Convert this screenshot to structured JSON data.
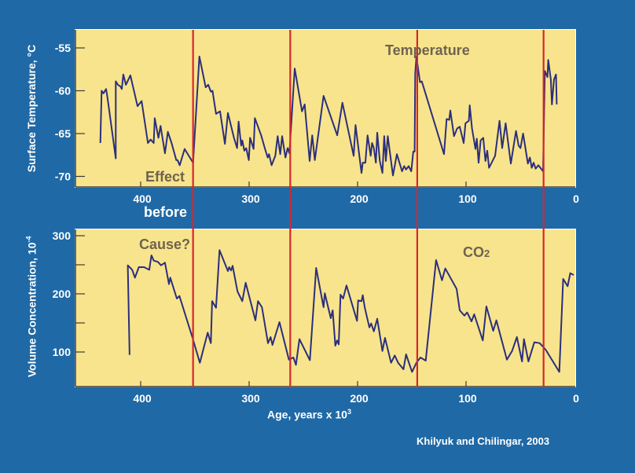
{
  "colors": {
    "background": "#1f69a6",
    "panel": "#f8e48c",
    "line": "#2b2f7c",
    "marker_line": "#d8262e",
    "annotation": "#6e634f"
  },
  "annotations": {
    "temperature": "Temperature",
    "effect": "Effect",
    "before": "before",
    "cause": "Cause?",
    "co2_main": "CO",
    "co2_sub": "2"
  },
  "credit": "Khilyuk and Chilingar, 2003",
  "chart_data": [
    {
      "type": "line",
      "title": "Temperature",
      "xlabel": "",
      "ylabel": "Surface Temperature, °C",
      "xlim": [
        460,
        0
      ],
      "ylim": [
        -71.5,
        -53
      ],
      "xticks": [
        400,
        300,
        200,
        100,
        0
      ],
      "yticks": [
        -55,
        -60,
        -65,
        -70
      ],
      "grid": false,
      "vertical_markers": [
        351.7,
        262.1,
        145.0,
        28.5
      ],
      "series": [
        {
          "name": "Temperature",
          "x": [
            437.2,
            436.0,
            434.3,
            431.9,
            430.7,
            423.0,
            423.0,
            421.0,
            418.6,
            417.4,
            416.0,
            413.6,
            409.5,
            402.9,
            399.1,
            393.3,
            390.9,
            388.0,
            387.0,
            383.6,
            381.7,
            377.6,
            374.9,
            371.5,
            367.2,
            366.0,
            364.0,
            359.5,
            351.7,
            345.9,
            340.1,
            337.7,
            335.3,
            333.8,
            330.5,
            326.8,
            322.3,
            319.6,
            314.0,
            311.1,
            309.7,
            307.3,
            306.3,
            304.4,
            302.7,
            300.3,
            299.1,
            295.9,
            294.7,
            288.9,
            286.0,
            282.9,
            281.7,
            279.3,
            275.9,
            273.7,
            271.3,
            269.6,
            266.5,
            264.5,
            262.8,
            258.0,
            251.2,
            248.8,
            244.2,
            241.8,
            239.4,
            231.4,
            218.8,
            214.0,
            203.6,
            201.9,
            196.4,
            195.2,
            192.8,
            190.8,
            187.9,
            186.7,
            185.0,
            183.1,
            181.9,
            179.5,
            177.1,
            175.4,
            173.9,
            172.2,
            167.4,
            163.8,
            159.0,
            157.0,
            155.3,
            152.9,
            150.5,
            148.6,
            147.4,
            146.9,
            145.7,
            142.5,
            140.8,
            120.3,
            117.9,
            115.5,
            114.5,
            111.1,
            108.2,
            105.8,
            102.2,
            100.5,
            97.4,
            96.6,
            94.5,
            91.3,
            90.1,
            88.4,
            86.5,
            84.1,
            82.1,
            80.4,
            78.8,
            73.2,
            69.1,
            66.7,
            63.5,
            58.7,
            53.9,
            51.5,
            49.8,
            47.4,
            43.0,
            41.1,
            39.4,
            37.7,
            35.8,
            33.3,
            29.0,
            27.3,
            24.9,
            24.2,
            21.8,
            20.8,
            18.9,
            17.0,
            16.4
          ],
          "y": [
            -66.1,
            -60.0,
            -60.3,
            -59.8,
            -60.7,
            -67.9,
            -58.9,
            -59.3,
            -59.5,
            -59.8,
            -58.1,
            -59.3,
            -58.2,
            -61.8,
            -61.2,
            -66.1,
            -65.7,
            -66.1,
            -63.2,
            -65.5,
            -64.1,
            -67.3,
            -64.8,
            -66.1,
            -68.1,
            -68.1,
            -68.7,
            -66.8,
            -68.4,
            -56.0,
            -59.6,
            -59.3,
            -60.1,
            -60.0,
            -62.7,
            -62.4,
            -66.2,
            -62.6,
            -65.5,
            -66.7,
            -63.6,
            -66.4,
            -65.8,
            -67.0,
            -66.7,
            -68.1,
            -65.5,
            -66.8,
            -63.2,
            -65.2,
            -66.5,
            -67.8,
            -67.4,
            -68.7,
            -67.6,
            -65.3,
            -67.4,
            -65.3,
            -67.8,
            -66.7,
            -67.3,
            -57.4,
            -62.4,
            -61.6,
            -68.2,
            -65.2,
            -68.1,
            -60.6,
            -65.2,
            -61.4,
            -67.6,
            -64.0,
            -69.6,
            -68.4,
            -68.4,
            -65.2,
            -67.6,
            -66.1,
            -66.7,
            -68.4,
            -64.9,
            -68.2,
            -69.6,
            -65.3,
            -68.2,
            -65.3,
            -69.9,
            -67.4,
            -69.4,
            -68.8,
            -69.2,
            -68.8,
            -69.4,
            -67.1,
            -67.1,
            -58.0,
            -56.0,
            -59.0,
            -58.9,
            -67.4,
            -63.3,
            -63.4,
            -62.3,
            -65.3,
            -64.4,
            -64.2,
            -66.1,
            -63.8,
            -63.5,
            -61.7,
            -64.4,
            -66.8,
            -65.6,
            -68.4,
            -65.8,
            -65.5,
            -68.2,
            -67.0,
            -69.0,
            -67.6,
            -63.5,
            -66.7,
            -63.8,
            -68.5,
            -64.7,
            -66.4,
            -66.7,
            -65.0,
            -68.5,
            -67.8,
            -69.0,
            -68.4,
            -69.1,
            -68.7,
            -69.4,
            -57.7,
            -58.4,
            -56.4,
            -58.7,
            -61.6,
            -58.7,
            -58.1,
            -61.6
          ]
        }
      ]
    },
    {
      "type": "line",
      "title": "CO2",
      "xlabel": "Age, years x 10",
      "xlabel_sup": "3",
      "ylabel": "Volume Concentration, 10",
      "ylabel_sup": "-4",
      "xlim": [
        460,
        0
      ],
      "ylim": [
        40,
        310
      ],
      "xticks": [
        400,
        300,
        200,
        100,
        0
      ],
      "yticks": [
        300,
        200,
        100
      ],
      "minor_yticks": [
        250,
        150
      ],
      "grid": false,
      "vertical_markers": [
        351.7,
        262.1,
        145.0,
        28.5
      ],
      "series": [
        {
          "name": "CO2",
          "x": [
            410.2,
            411.9,
            407.8,
            405.3,
            401.7,
            396.9,
            392.1,
            390.1,
            388.0,
            384.1,
            381.2,
            377.6,
            373.9,
            372.7,
            366.7,
            364.3,
            352.2,
            345.4,
            338.2,
            335.3,
            334.1,
            330.5,
            327.3,
            319.6,
            318.4,
            316.7,
            315.2,
            310.7,
            306.3,
            303.2,
            294.2,
            291.8,
            288.2,
            282.6,
            280.2,
            278.5,
            272.0,
            263.3,
            259.2,
            256.8,
            253.6,
            244.0,
            238.2,
            231.4,
            230.2,
            224.7,
            223.0,
            220.5,
            218.9,
            217.4,
            215.7,
            213.3,
            210.2,
            200.5,
            199.5,
            196.4,
            195.2,
            193.3,
            189.1,
            187.5,
            185.0,
            181.9,
            177.1,
            174.7,
            169.1,
            165.7,
            162.6,
            157.7,
            155.3,
            149.8,
            145.7,
            142.0,
            137.2,
            127.6,
            122.2,
            119.1,
            108.7,
            105.8,
            101.5,
            99.0,
            94.9,
            92.5,
            84.6,
            81.2,
            74.9,
            72.0,
            62.3,
            57.5,
            53.1,
            48.3,
            46.6,
            42.5,
            37.0,
            32.1,
            26.6,
            14.0,
            10.4,
            6.3,
            3.9,
            0.7
          ],
          "y": [
            95.0,
            249.1,
            241.4,
            227.9,
            245.9,
            245.9,
            241.4,
            266.2,
            257.2,
            255.0,
            249.1,
            253.6,
            216.7,
            227.9,
            191.9,
            196.4,
            124.3,
            81.5,
            133.3,
            115.3,
            187.4,
            176.1,
            275.2,
            239.2,
            246.0,
            240.1,
            248.2,
            204.1,
            187.4,
            219.0,
            154.5,
            187.4,
            177.0,
            115.3,
            125.7,
            112.2,
            151.4,
            86.9,
            90.5,
            77.9,
            122.1,
            86.0,
            244.6,
            177.0,
            200.9,
            158.1,
            171.6,
            110.8,
            119.8,
            113.1,
            198.6,
            191.9,
            214.4,
            153.6,
            188.7,
            187.4,
            197.7,
            176.1,
            142.3,
            149.1,
            135.6,
            157.2,
            101.8,
            124.3,
            81.5,
            94.1,
            81.5,
            70.3,
            95.9,
            65.8,
            81.5,
            90.5,
            85.1,
            258.1,
            223.4,
            243.7,
            208.6,
            171.6,
            162.6,
            168.0,
            152.7,
            164.9,
            119.8,
            178.4,
            136.5,
            154.5,
            86.9,
            101.8,
            125.7,
            83.8,
            122.1,
            83.8,
            116.7,
            115.3,
            104.1,
            65.8,
            225.7,
            213.1,
            235.6,
            232.4
          ]
        }
      ]
    }
  ]
}
